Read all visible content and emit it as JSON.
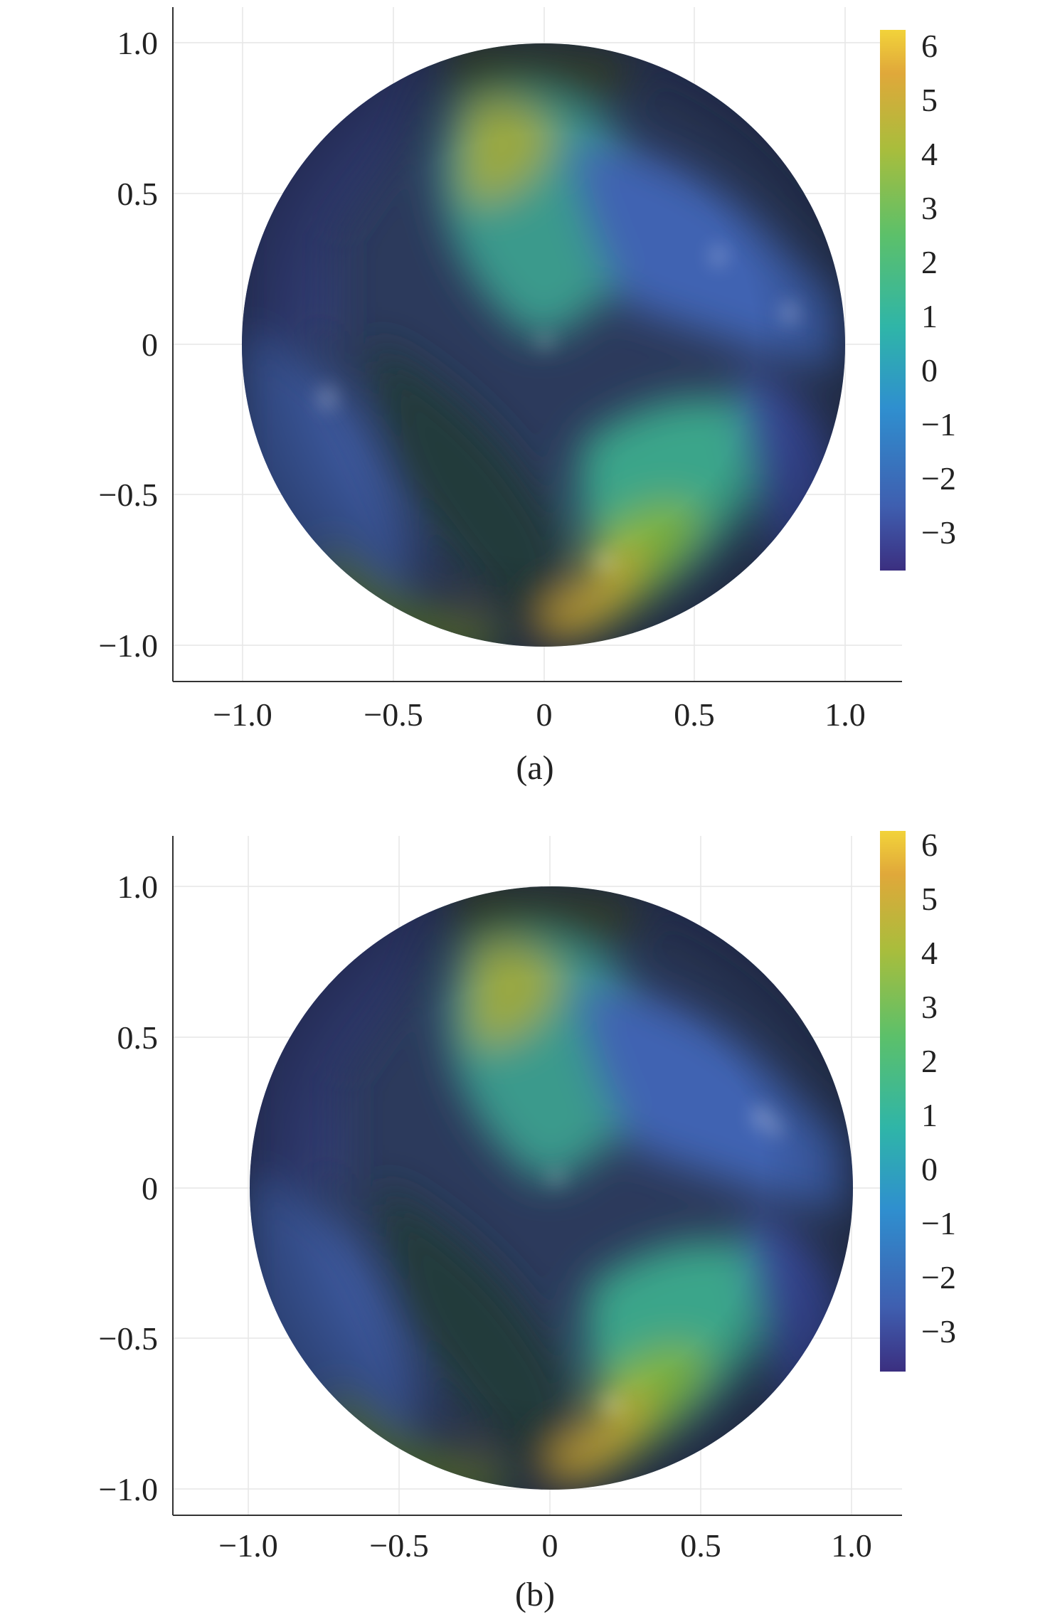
{
  "figure": {
    "captions": [
      "(a)",
      "(b)"
    ]
  },
  "chart_data": [
    {
      "type": "heatmap",
      "panel_label": "(a)",
      "domain": "unit disk",
      "xlim": [
        -1.2,
        1.2
      ],
      "ylim": [
        -1.12,
        1.12
      ],
      "x_ticks": [
        "−1.0",
        "−0.5",
        "0",
        "0.5",
        "1.0"
      ],
      "x_tick_values": [
        -1.0,
        -0.5,
        0,
        0.5,
        1.0
      ],
      "y_ticks": [
        "1.0",
        "0.5",
        "0",
        "−0.5",
        "−1.0"
      ],
      "y_tick_values": [
        1.0,
        0.5,
        0,
        -0.5,
        -1.0
      ],
      "grid": true,
      "colorbar": {
        "range": [
          -3.7,
          6.3
        ],
        "ticks": [
          "6",
          "5",
          "4",
          "3",
          "2",
          "1",
          "0",
          "−1",
          "−2",
          "−3"
        ],
        "tick_values": [
          6,
          5,
          4,
          3,
          2,
          1,
          0,
          -1,
          -2,
          -3
        ],
        "colormap": [
          "#3b2f80",
          "#3f5fb0",
          "#2f8fcf",
          "#2fb5a8",
          "#5cc06a",
          "#a9bd3c",
          "#e0a83a",
          "#f2d33a"
        ]
      }
    },
    {
      "type": "heatmap",
      "panel_label": "(b)",
      "domain": "unit disk",
      "xlim": [
        -1.2,
        1.2
      ],
      "ylim": [
        -1.12,
        1.12
      ],
      "x_ticks": [
        "−1.0",
        "−0.5",
        "0",
        "0.5",
        "1.0"
      ],
      "x_tick_values": [
        -1.0,
        -0.5,
        0,
        0.5,
        1.0
      ],
      "y_ticks": [
        "1.0",
        "0.5",
        "0",
        "−0.5",
        "−1.0"
      ],
      "y_tick_values": [
        1.0,
        0.5,
        0,
        -0.5,
        -1.0
      ],
      "grid": true,
      "colorbar": {
        "range": [
          -3.7,
          6.3
        ],
        "ticks": [
          "6",
          "5",
          "4",
          "3",
          "2",
          "1",
          "0",
          "−1",
          "−2",
          "−3"
        ],
        "tick_values": [
          6,
          5,
          4,
          3,
          2,
          1,
          0,
          -1,
          -2,
          -3
        ],
        "colormap": [
          "#3b2f80",
          "#3f5fb0",
          "#2f8fcf",
          "#2fb5a8",
          "#5cc06a",
          "#a9bd3c",
          "#e0a83a",
          "#f2d33a"
        ]
      }
    }
  ]
}
